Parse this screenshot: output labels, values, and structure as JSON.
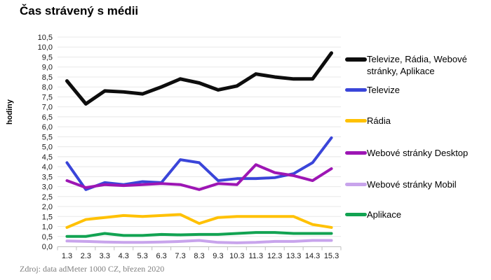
{
  "title": "Čas strávený s médii",
  "source": "Zdroj: data adMeter 1000 CZ, březen 2020",
  "chart_data": {
    "type": "line",
    "title": "Čas strávený s médii",
    "xlabel": "",
    "ylabel": "hodiny",
    "ylim": [
      0,
      10.5
    ],
    "y_tick_step": 0.5,
    "grid": true,
    "legend_position": "right",
    "y_ticks": [
      "0,0",
      "0,5",
      "1,0",
      "1,5",
      "2,0",
      "2,5",
      "3,0",
      "3,5",
      "4,0",
      "4,5",
      "5,0",
      "5,5",
      "6,0",
      "6,5",
      "7,0",
      "7,5",
      "8,0",
      "8,5",
      "9,0",
      "9,5",
      "10,0",
      "10,5"
    ],
    "categories": [
      "1.3",
      "2.3",
      "3.3",
      "4.3",
      "5.3",
      "6.3",
      "7.3",
      "8.3",
      "9.3",
      "10.3",
      "11.3",
      "12.3",
      "13.3",
      "14.3",
      "15.3"
    ],
    "series": [
      {
        "name": "Televize, Rádia, Webové stránky, Aplikace",
        "color": "#0d0d0d",
        "width": 5,
        "values": [
          8.3,
          7.15,
          7.8,
          7.75,
          7.65,
          8.0,
          8.4,
          8.2,
          7.85,
          8.05,
          8.65,
          8.5,
          8.4,
          8.4,
          9.7
        ]
      },
      {
        "name": "Televize",
        "color": "#3a45d9",
        "width": 4,
        "values": [
          4.2,
          2.85,
          3.2,
          3.1,
          3.25,
          3.2,
          4.35,
          4.2,
          3.3,
          3.4,
          3.4,
          3.45,
          3.65,
          4.2,
          5.45
        ]
      },
      {
        "name": "Rádia",
        "color": "#ffc103",
        "width": 4,
        "values": [
          0.95,
          1.35,
          1.45,
          1.55,
          1.5,
          1.55,
          1.6,
          1.15,
          1.45,
          1.5,
          1.5,
          1.5,
          1.5,
          1.1,
          0.95
        ]
      },
      {
        "name": "Webové stránky Desktop",
        "color": "#9d16b4",
        "width": 4,
        "values": [
          3.3,
          2.95,
          3.1,
          3.05,
          3.1,
          3.15,
          3.1,
          2.85,
          3.15,
          3.1,
          4.1,
          3.7,
          3.55,
          3.3,
          3.9
        ]
      },
      {
        "name": "Webové stránky Mobil",
        "color": "#c8a4ec",
        "width": 4,
        "values": [
          0.27,
          0.25,
          0.22,
          0.2,
          0.2,
          0.22,
          0.25,
          0.3,
          0.2,
          0.18,
          0.2,
          0.25,
          0.25,
          0.3,
          0.3
        ]
      },
      {
        "name": "Aplikace",
        "color": "#12a352",
        "width": 4,
        "values": [
          0.5,
          0.5,
          0.65,
          0.55,
          0.55,
          0.6,
          0.58,
          0.6,
          0.6,
          0.65,
          0.7,
          0.7,
          0.65,
          0.65,
          0.65
        ]
      }
    ]
  },
  "style": {
    "grid_color": "#e8e8e8",
    "axis_color": "#bfbfbf",
    "tick_label_color": "#1a1a1a"
  }
}
